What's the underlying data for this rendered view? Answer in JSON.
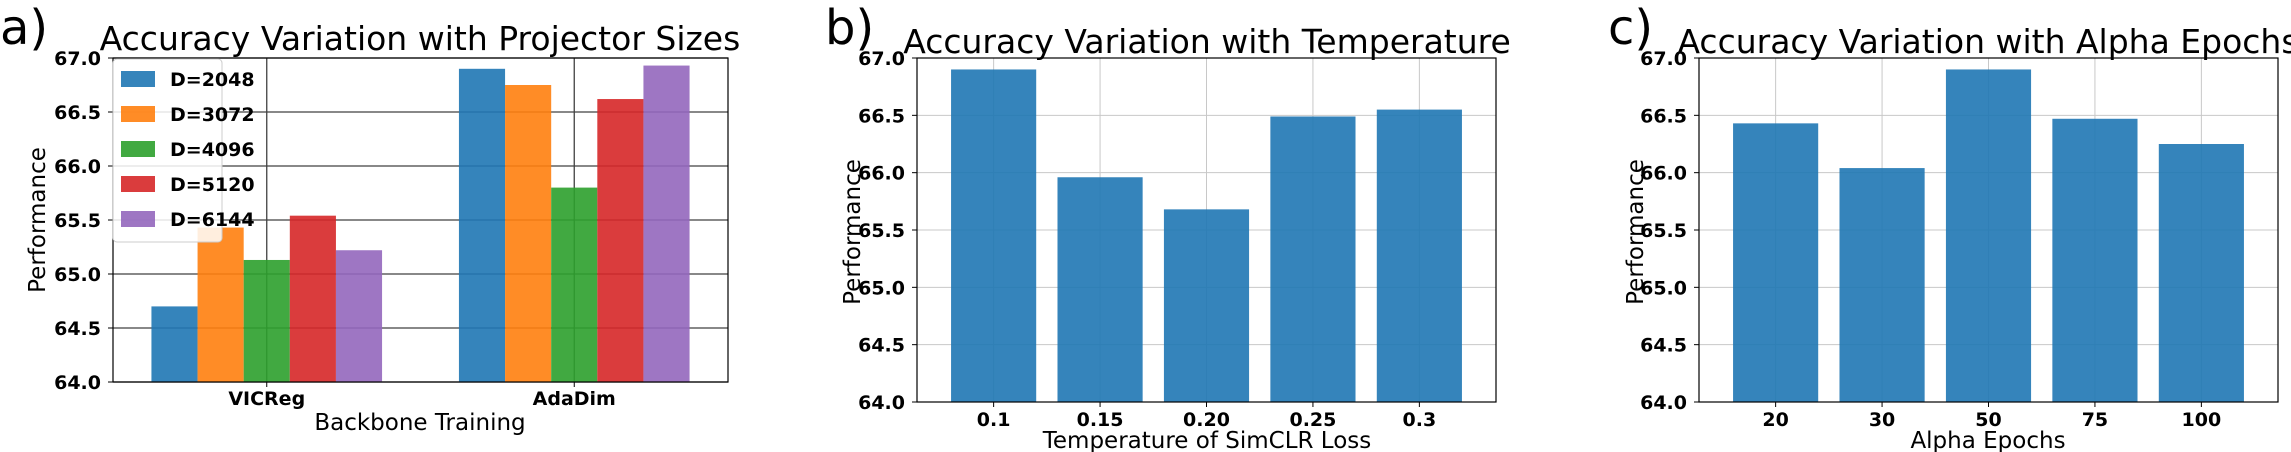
{
  "chart_data": [
    {
      "panel": "a)",
      "type": "bar",
      "title": "Accuracy Variation with Projector Sizes",
      "xlabel": "Backbone Training",
      "ylabel": "Performance",
      "ylim": [
        64.0,
        67.0
      ],
      "yticks": [
        "64.0",
        "64.5",
        "65.0",
        "65.5",
        "66.0",
        "66.5",
        "67.0"
      ],
      "categories": [
        "VICReg",
        "AdaDim"
      ],
      "series": [
        {
          "name": "D=2048",
          "color": "#1f77b4",
          "values": [
            64.7,
            66.9
          ]
        },
        {
          "name": "D=3072",
          "color": "#ff7f0e",
          "values": [
            65.43,
            66.75
          ]
        },
        {
          "name": "D=4096",
          "color": "#2ca02c",
          "values": [
            65.13,
            65.8
          ]
        },
        {
          "name": "D=5120",
          "color": "#d62728",
          "values": [
            65.54,
            66.62
          ]
        },
        {
          "name": "D=6144",
          "color": "#9467bd",
          "values": [
            65.22,
            66.93
          ]
        }
      ],
      "grid": true,
      "grid_color": "#404040",
      "legend": "top-left"
    },
    {
      "panel": "b)",
      "type": "bar",
      "title": "Accuracy Variation with Temperature",
      "xlabel": "Temperature of SimCLR Loss",
      "ylabel": "Performance",
      "ylim": [
        64.0,
        67.0
      ],
      "yticks": [
        "64.0",
        "64.5",
        "65.0",
        "65.5",
        "66.0",
        "66.5",
        "67.0"
      ],
      "categories": [
        "0.1",
        "0.15",
        "0.20",
        "0.25",
        "0.3"
      ],
      "values": [
        66.9,
        65.96,
        65.68,
        66.49,
        66.55
      ],
      "color": "#1f77b4",
      "grid": true,
      "grid_color": "#c8c8c8"
    },
    {
      "panel": "c)",
      "type": "bar",
      "title": "Accuracy Variation with Alpha Epochs",
      "xlabel": "Alpha Epochs",
      "ylabel": "Performance",
      "ylim": [
        64.0,
        67.0
      ],
      "yticks": [
        "64.0",
        "64.5",
        "65.0",
        "65.5",
        "66.0",
        "66.5",
        "67.0"
      ],
      "categories": [
        "20",
        "30",
        "50",
        "75",
        "100"
      ],
      "values": [
        66.43,
        66.04,
        66.9,
        66.47,
        66.25
      ],
      "color": "#1f77b4",
      "grid": true,
      "grid_color": "#c8c8c8"
    }
  ]
}
